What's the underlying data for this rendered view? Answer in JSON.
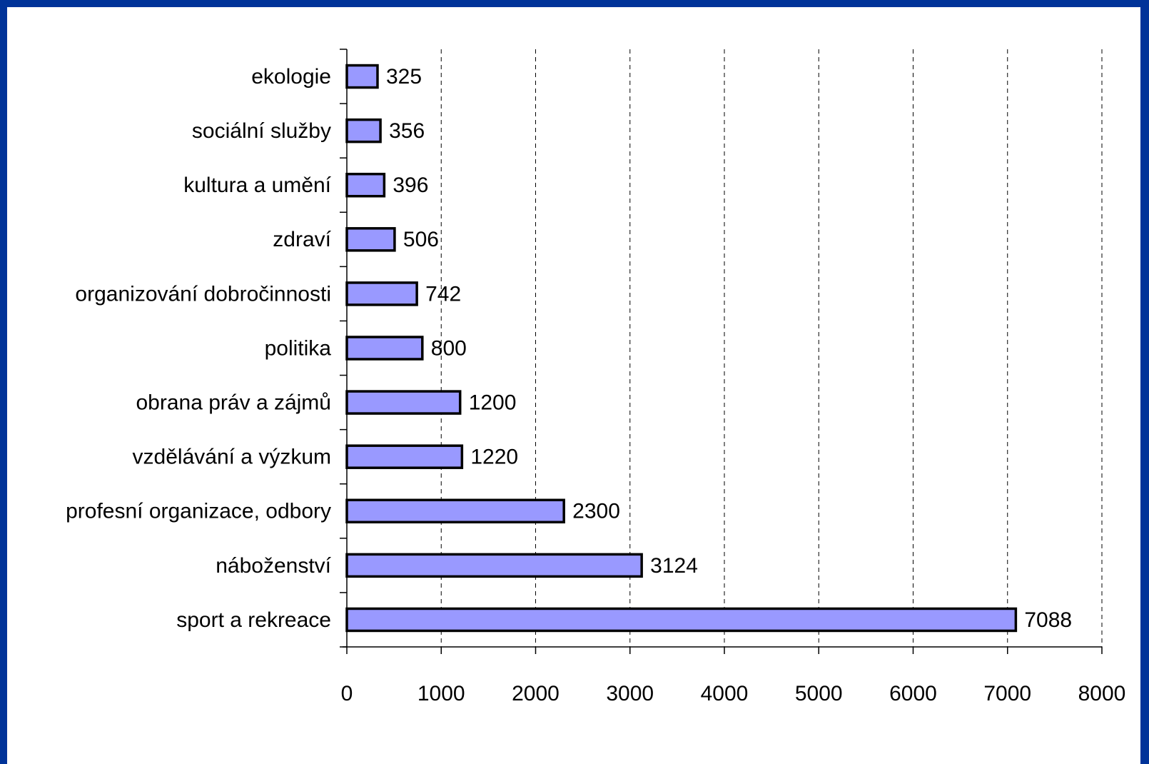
{
  "chart_data": {
    "type": "bar",
    "orientation": "horizontal",
    "categories": [
      "ekologie",
      "sociální služby",
      "kultura a umění",
      "zdraví",
      "organizování dobročinnosti",
      "politika",
      "obrana práv a zájmů",
      "vzdělávání a výzkum",
      "profesní organizace, odbory",
      "náboženství",
      "sport a rekreace"
    ],
    "values": [
      325,
      356,
      396,
      506,
      742,
      800,
      1200,
      1220,
      2300,
      3124,
      7088
    ],
    "color": "#9999ff",
    "xlim": [
      0,
      8000
    ],
    "xticks": [
      0,
      1000,
      2000,
      3000,
      4000,
      5000,
      6000,
      7000,
      8000
    ],
    "grid": true
  }
}
